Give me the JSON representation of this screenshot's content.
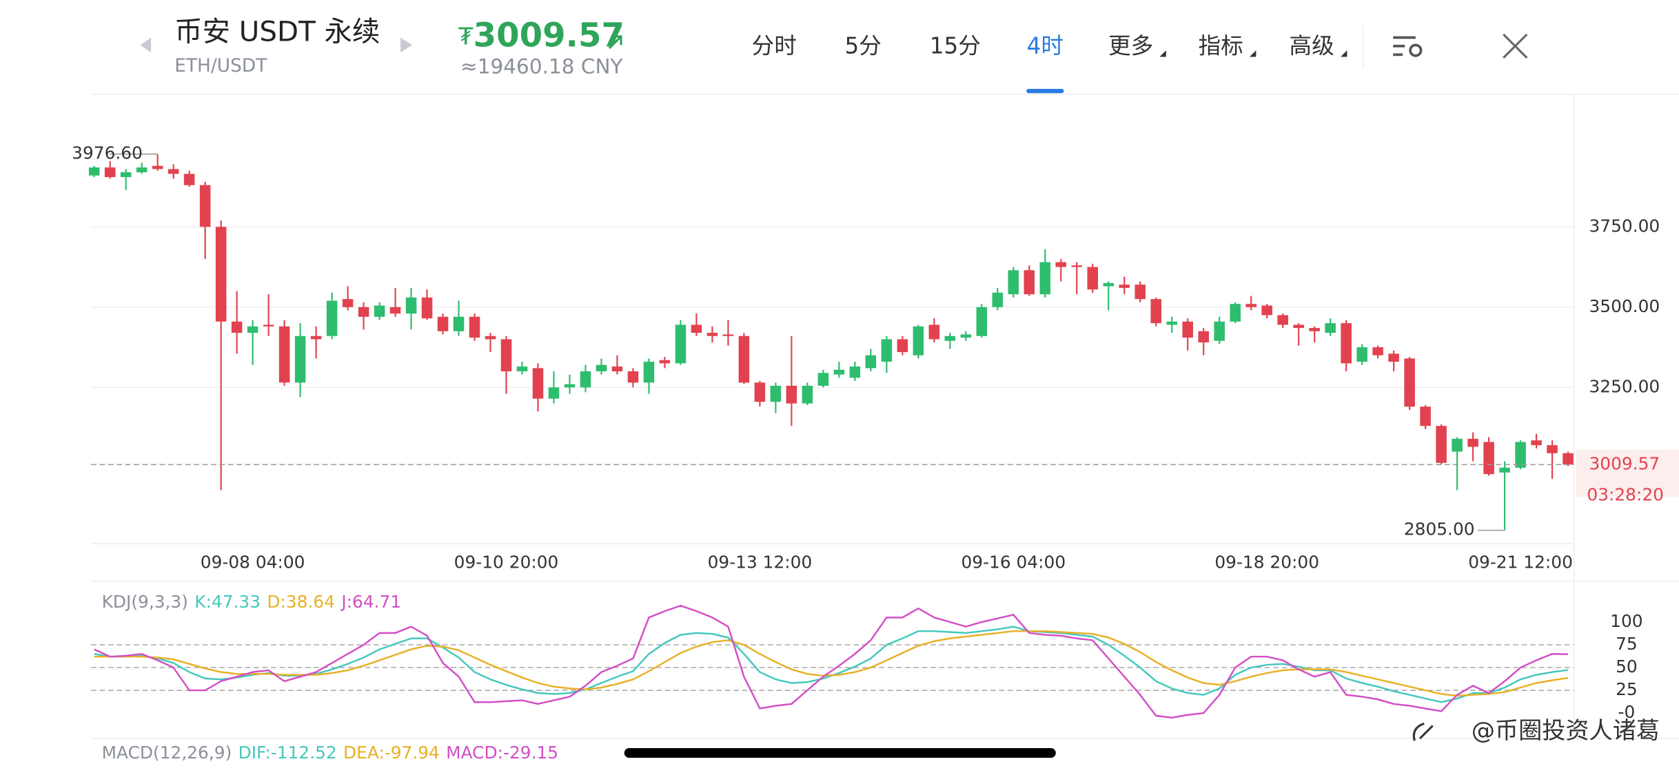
{
  "header": {
    "title": "币安 USDT 永续",
    "pair": "ETH/USDT",
    "currency": "₮",
    "price": "3009.57",
    "price_cny": "≈19460.18 CNY"
  },
  "tabs": [
    "分时",
    "5分",
    "15分",
    "4时",
    "更多",
    "指标",
    "高级"
  ],
  "active_tab": 3,
  "chart_data": [
    {
      "type": "candlestick",
      "categories": [
        null,
        null,
        null,
        null,
        null,
        null,
        null,
        null,
        null,
        null,
        "09-08 04:00",
        null,
        null,
        null,
        null,
        null,
        null,
        null,
        null,
        null,
        null,
        null,
        null,
        null,
        null,
        null,
        "09-10 20:00",
        null,
        null,
        null,
        null,
        null,
        null,
        null,
        null,
        null,
        null,
        null,
        null,
        null,
        null,
        null,
        "09-13 12:00",
        null,
        null,
        null,
        null,
        null,
        null,
        null,
        null,
        null,
        null,
        null,
        null,
        null,
        null,
        null,
        "09-16 04:00",
        null,
        null,
        null,
        null,
        null,
        null,
        null,
        null,
        null,
        null,
        null,
        null,
        null,
        null,
        null,
        "09-18 20:00",
        null,
        null,
        null,
        null,
        null,
        null,
        null,
        null,
        null,
        null,
        null,
        null,
        null,
        null,
        null,
        "09-21 12:00",
        null,
        null,
        null
      ],
      "open": [
        3910,
        3935,
        3905,
        3920,
        3940,
        3930,
        3915,
        3880,
        3750,
        3455,
        3420,
        3445,
        3440,
        3265,
        3410,
        3410,
        3525,
        3500,
        3470,
        3500,
        3480,
        3530,
        3470,
        3425,
        3470,
        3410,
        3400,
        3300,
        3310,
        3215,
        3250,
        3250,
        3300,
        3315,
        3300,
        3265,
        3335,
        3325,
        3445,
        3420,
        3415,
        3410,
        3265,
        3205,
        3255,
        3200,
        3255,
        3290,
        3280,
        3310,
        3330,
        3400,
        3350,
        3445,
        3395,
        3405,
        3410,
        3500,
        3540,
        3615,
        3540,
        3640,
        3630,
        3625,
        3565,
        3570,
        3570,
        3525,
        3445,
        3455,
        3425,
        3395,
        3455,
        3510,
        3505,
        3475,
        3445,
        3435,
        3420,
        3450,
        3330,
        3375,
        3355,
        3340,
        3190,
        3130,
        3050,
        3090,
        3080,
        2985,
        3000,
        3085,
        3070,
        3045
      ],
      "high": [
        3940,
        3955,
        3930,
        3950,
        3976.6,
        3945,
        3925,
        3890,
        3770,
        3550,
        3460,
        3540,
        3460,
        3450,
        3440,
        3545,
        3565,
        3515,
        3515,
        3560,
        3560,
        3555,
        3480,
        3520,
        3480,
        3420,
        3410,
        3330,
        3325,
        3300,
        3290,
        3320,
        3340,
        3350,
        3310,
        3340,
        3345,
        3460,
        3480,
        3440,
        3460,
        3420,
        3270,
        3265,
        3410,
        3265,
        3305,
        3330,
        3330,
        3370,
        3410,
        3410,
        3445,
        3465,
        3420,
        3425,
        3510,
        3560,
        3625,
        3630,
        3680,
        3650,
        3640,
        3635,
        3580,
        3595,
        3580,
        3530,
        3470,
        3465,
        3435,
        3470,
        3515,
        3535,
        3510,
        3480,
        3450,
        3440,
        3465,
        3460,
        3385,
        3380,
        3365,
        3345,
        3195,
        3135,
        3095,
        3110,
        3095,
        3020,
        3085,
        3105,
        3085,
        3050
      ],
      "low": [
        3905,
        3900,
        3865,
        3915,
        3925,
        3900,
        3875,
        3650,
        2930,
        3355,
        3320,
        3410,
        3255,
        3220,
        3340,
        3400,
        3490,
        3430,
        3460,
        3470,
        3430,
        3460,
        3415,
        3410,
        3395,
        3360,
        3230,
        3290,
        3175,
        3200,
        3230,
        3235,
        3290,
        3290,
        3250,
        3230,
        3310,
        3320,
        3410,
        3390,
        3380,
        3260,
        3190,
        3170,
        3130,
        3195,
        3250,
        3280,
        3270,
        3300,
        3295,
        3350,
        3340,
        3390,
        3370,
        3395,
        3405,
        3490,
        3530,
        3535,
        3530,
        3580,
        3540,
        3545,
        3490,
        3540,
        3515,
        3440,
        3420,
        3365,
        3350,
        3385,
        3450,
        3490,
        3465,
        3435,
        3380,
        3390,
        3410,
        3300,
        3320,
        3340,
        3300,
        3180,
        3120,
        3010,
        2930,
        3020,
        2975,
        2805,
        2995,
        3060,
        2965,
        3005
      ],
      "close": [
        3935,
        3905,
        3920,
        3935,
        3930,
        3915,
        3880,
        3750,
        3455,
        3420,
        3440,
        3440,
        3265,
        3410,
        3400,
        3520,
        3500,
        3470,
        3505,
        3480,
        3530,
        3465,
        3425,
        3470,
        3405,
        3400,
        3300,
        3315,
        3215,
        3250,
        3260,
        3300,
        3320,
        3300,
        3265,
        3330,
        3325,
        3445,
        3420,
        3410,
        3410,
        3265,
        3205,
        3255,
        3200,
        3255,
        3295,
        3305,
        3315,
        3350,
        3400,
        3360,
        3440,
        3400,
        3410,
        3415,
        3500,
        3545,
        3615,
        3540,
        3640,
        3625,
        3625,
        3555,
        3575,
        3560,
        3525,
        3450,
        3455,
        3405,
        3390,
        3455,
        3510,
        3500,
        3475,
        3445,
        3435,
        3425,
        3450,
        3325,
        3375,
        3350,
        3330,
        3190,
        3130,
        3015,
        3090,
        3065,
        2980,
        3000,
        3080,
        3070,
        3045,
        3009.57
      ],
      "up_color": "#2ebd6f",
      "down_color": "#e2424f",
      "ylim": [
        2763,
        4163
      ],
      "yticks": [
        {
          "value": 3250,
          "label": "3250.00"
        },
        {
          "value": 3500,
          "label": "3500.00"
        },
        {
          "value": 3750,
          "label": "3750.00"
        }
      ],
      "grid": true,
      "annotations": [
        {
          "value": 3976.6,
          "label": "3976.60"
        },
        {
          "value": 2805,
          "label": "2805.00"
        }
      ],
      "last_price": 3009.57,
      "countdown": "03:28:20"
    },
    {
      "type": "line",
      "title": "KDJ(9,3,3)",
      "series": [
        {
          "label": "K:47.33",
          "color": "#45c8bd",
          "values": [
            65,
            62,
            62,
            63,
            60,
            55,
            45,
            38,
            37,
            39,
            42,
            44,
            41,
            41,
            43,
            48,
            54,
            61,
            70,
            76,
            82,
            82,
            72,
            61,
            45,
            37,
            31,
            26,
            22,
            21,
            22,
            26,
            33,
            40,
            46,
            65,
            77,
            86,
            88,
            87,
            83,
            65,
            45,
            37,
            33,
            34,
            38,
            44,
            51,
            60,
            75,
            82,
            90,
            90,
            89,
            88,
            90,
            92,
            95,
            90,
            89,
            88,
            86,
            84,
            75,
            63,
            50,
            35,
            27,
            22,
            20,
            27,
            42,
            50,
            53,
            54,
            51,
            47,
            47,
            38,
            33,
            29,
            24,
            20,
            16,
            12,
            16,
            22,
            22,
            28,
            37,
            42,
            45,
            47.33
          ]
        },
        {
          "label": "D:38.64",
          "color": "#e8b027",
          "values": [
            62,
            62,
            62,
            62,
            61,
            59,
            54,
            49,
            45,
            43,
            43,
            43,
            42,
            42,
            42,
            44,
            47,
            52,
            58,
            64,
            70,
            74,
            73,
            69,
            61,
            53,
            46,
            39,
            33,
            29,
            27,
            26,
            28,
            32,
            37,
            46,
            56,
            66,
            73,
            78,
            80,
            75,
            65,
            56,
            48,
            43,
            41,
            42,
            45,
            50,
            58,
            66,
            74,
            79,
            82,
            84,
            86,
            88,
            90,
            90,
            90,
            89,
            88,
            87,
            83,
            76,
            67,
            56,
            47,
            39,
            33,
            31,
            35,
            40,
            44,
            47,
            48,
            48,
            48,
            45,
            41,
            37,
            33,
            29,
            25,
            21,
            19,
            20,
            21,
            23,
            28,
            33,
            36,
            38.64
          ]
        },
        {
          "label": "J:64.71",
          "color": "#d34fc6",
          "values": [
            70,
            62,
            63,
            65,
            58,
            50,
            25,
            25,
            35,
            40,
            45,
            47,
            35,
            40,
            45,
            55,
            65,
            75,
            88,
            88,
            95,
            85,
            55,
            40,
            12,
            12,
            13,
            14,
            10,
            14,
            18,
            30,
            45,
            52,
            60,
            105,
            112,
            118,
            112,
            105,
            95,
            40,
            5,
            8,
            10,
            25,
            40,
            52,
            65,
            80,
            105,
            105,
            115,
            105,
            100,
            95,
            100,
            104,
            108,
            88,
            86,
            85,
            82,
            80,
            60,
            40,
            20,
            -3,
            -5,
            -2,
            0,
            20,
            50,
            62,
            62,
            58,
            48,
            40,
            45,
            20,
            18,
            15,
            10,
            8,
            5,
            2,
            20,
            30,
            22,
            35,
            50,
            58,
            65,
            64.71
          ]
        }
      ],
      "ylim": [
        -28,
        139
      ],
      "yticks": [
        {
          "value": 0,
          "label": "-0"
        },
        25,
        50,
        75,
        100
      ],
      "grid": true
    }
  ],
  "macd_header": {
    "title": "MACD(12,26,9)",
    "labels": [
      {
        "text": "DIF:-112.52",
        "color": "#45c8bd"
      },
      {
        "text": "DEA:-97.94",
        "color": "#e8b027"
      },
      {
        "text": "MACD:-29.15",
        "color": "#d34fc6"
      }
    ]
  },
  "watermark": "@币圈投资人诸葛"
}
